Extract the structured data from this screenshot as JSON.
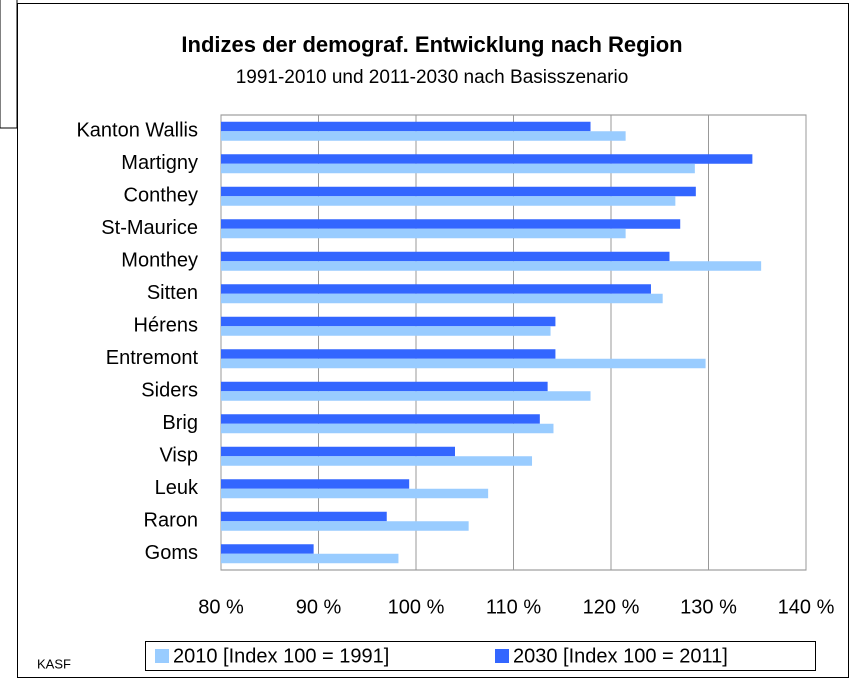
{
  "chart_data": {
    "type": "hbar",
    "title": "Indizes der demograf. Entwicklung nach Region",
    "subtitle": "1991-2010 und 2011-2030 nach Basisszenario",
    "source": "KASF",
    "categories": [
      "Kanton Wallis",
      "Martigny",
      "Conthey",
      "St-Maurice",
      "Monthey",
      "Sitten",
      "Hérens",
      "Entremont",
      "Siders",
      "Brig",
      "Visp",
      "Leuk",
      "Raron",
      "Goms"
    ],
    "series": [
      {
        "name": "2010 [Index 100 = 1991]",
        "color": "#99ccff",
        "values": [
          121.5,
          128.6,
          126.6,
          121.5,
          135.4,
          125.3,
          113.8,
          129.7,
          117.9,
          114.1,
          111.9,
          107.4,
          105.4,
          98.2
        ]
      },
      {
        "name": "2030 [Index 100 = 2011]",
        "color": "#3366ff",
        "values": [
          117.9,
          134.5,
          128.7,
          127.1,
          126.0,
          124.1,
          114.3,
          114.3,
          113.5,
          112.7,
          104.0,
          99.3,
          97.0,
          89.5
        ]
      }
    ],
    "xlim": [
      80,
      140
    ],
    "xticks": [
      {
        "value": 80,
        "label": "80 %"
      },
      {
        "value": 90,
        "label": "90 %"
      },
      {
        "value": 100,
        "label": "100 %"
      },
      {
        "value": 110,
        "label": "110 %"
      },
      {
        "value": 120,
        "label": "120 %"
      },
      {
        "value": 130,
        "label": "130 %"
      },
      {
        "value": 140,
        "label": "140 %"
      }
    ],
    "grid": true,
    "legend": "bottom"
  }
}
